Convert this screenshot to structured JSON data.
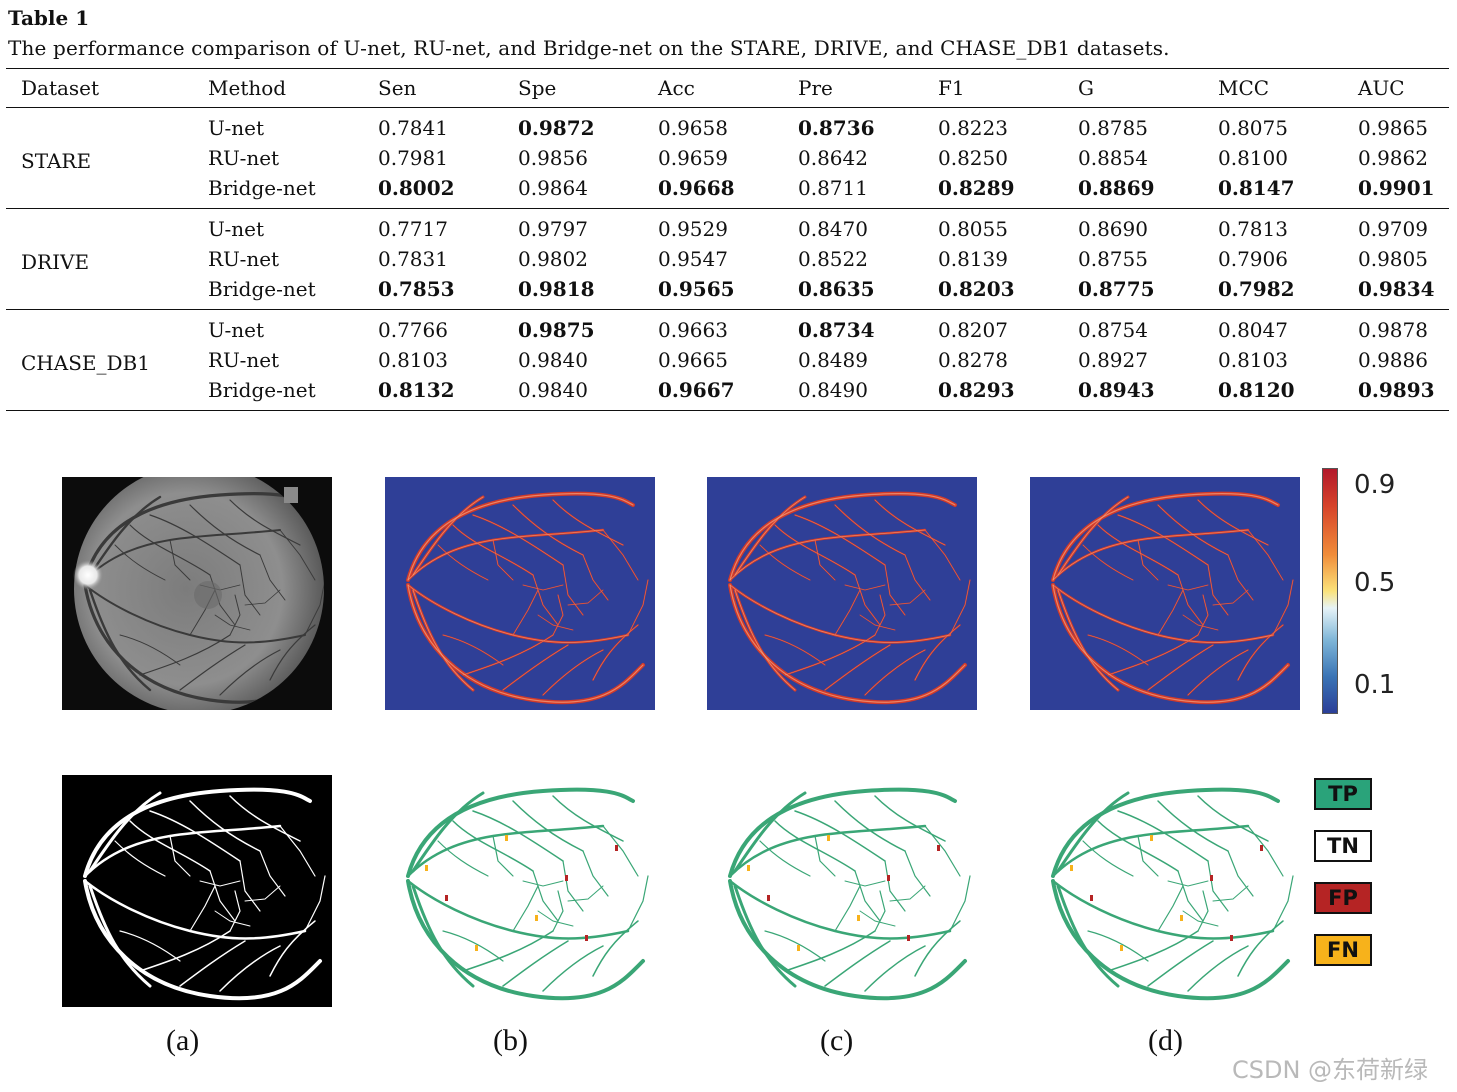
{
  "table": {
    "title": "Table 1",
    "caption": "The performance comparison of U-net, RU-net, and Bridge-net on the STARE, DRIVE, and CHASE_DB1 datasets.",
    "headers": [
      "Dataset",
      "Method",
      "Sen",
      "Spe",
      "Acc",
      "Pre",
      "F1",
      "G",
      "MCC",
      "AUC"
    ],
    "groups": [
      {
        "dataset": "STARE",
        "rows": [
          {
            "method": "U-net",
            "values": [
              "0.7841",
              "0.9872",
              "0.9658",
              "0.8736",
              "0.8223",
              "0.8785",
              "0.8075",
              "0.9865"
            ],
            "bold": [
              false,
              true,
              false,
              true,
              false,
              false,
              false,
              false
            ]
          },
          {
            "method": "RU-net",
            "values": [
              "0.7981",
              "0.9856",
              "0.9659",
              "0.8642",
              "0.8250",
              "0.8854",
              "0.8100",
              "0.9862"
            ],
            "bold": [
              false,
              false,
              false,
              false,
              false,
              false,
              false,
              false
            ]
          },
          {
            "method": "Bridge-net",
            "values": [
              "0.8002",
              "0.9864",
              "0.9668",
              "0.8711",
              "0.8289",
              "0.8869",
              "0.8147",
              "0.9901"
            ],
            "bold": [
              true,
              false,
              true,
              false,
              true,
              true,
              true,
              true
            ]
          }
        ]
      },
      {
        "dataset": "DRIVE",
        "rows": [
          {
            "method": "U-net",
            "values": [
              "0.7717",
              "0.9797",
              "0.9529",
              "0.8470",
              "0.8055",
              "0.8690",
              "0.7813",
              "0.9709"
            ],
            "bold": [
              false,
              false,
              false,
              false,
              false,
              false,
              false,
              false
            ]
          },
          {
            "method": "RU-net",
            "values": [
              "0.7831",
              "0.9802",
              "0.9547",
              "0.8522",
              "0.8139",
              "0.8755",
              "0.7906",
              "0.9805"
            ],
            "bold": [
              false,
              false,
              false,
              false,
              false,
              false,
              false,
              false
            ]
          },
          {
            "method": "Bridge-net",
            "values": [
              "0.7853",
              "0.9818",
              "0.9565",
              "0.8635",
              "0.8203",
              "0.8775",
              "0.7982",
              "0.9834"
            ],
            "bold": [
              true,
              true,
              true,
              true,
              true,
              true,
              true,
              true
            ]
          }
        ]
      },
      {
        "dataset": "CHASE_DB1",
        "rows": [
          {
            "method": "U-net",
            "values": [
              "0.7766",
              "0.9875",
              "0.9663",
              "0.8734",
              "0.8207",
              "0.8754",
              "0.8047",
              "0.9878"
            ],
            "bold": [
              false,
              true,
              false,
              true,
              false,
              false,
              false,
              false
            ]
          },
          {
            "method": "RU-net",
            "values": [
              "0.8103",
              "0.9840",
              "0.9665",
              "0.8489",
              "0.8278",
              "0.8927",
              "0.8103",
              "0.9886"
            ],
            "bold": [
              false,
              false,
              false,
              false,
              false,
              false,
              false,
              false
            ]
          },
          {
            "method": "Bridge-net",
            "values": [
              "0.8132",
              "0.9840",
              "0.9667",
              "0.8490",
              "0.8293",
              "0.8943",
              "0.8120",
              "0.9893"
            ],
            "bold": [
              true,
              false,
              true,
              false,
              true,
              true,
              true,
              true
            ]
          }
        ]
      }
    ]
  },
  "figure": {
    "colorbar": {
      "ticks": [
        "0.9",
        "0.5",
        "0.1"
      ],
      "colors": [
        "#b2182b",
        "#fbe27a",
        "#2b3f98"
      ]
    },
    "legend": [
      {
        "label": "TP",
        "color": "#2aa37a"
      },
      {
        "label": "TN",
        "color": "#ffffff"
      },
      {
        "label": "FP",
        "color": "#b52424"
      },
      {
        "label": "FN",
        "color": "#f7b21b"
      }
    ],
    "subfigure_labels": [
      "(a)",
      "(b)",
      "(c)",
      "(d)"
    ],
    "heatmap_bg": "#2f3f97",
    "vessel_red": "#d23a2a",
    "vessel_green": "#3aa676"
  },
  "watermark": "CSDN @东荷新绿"
}
